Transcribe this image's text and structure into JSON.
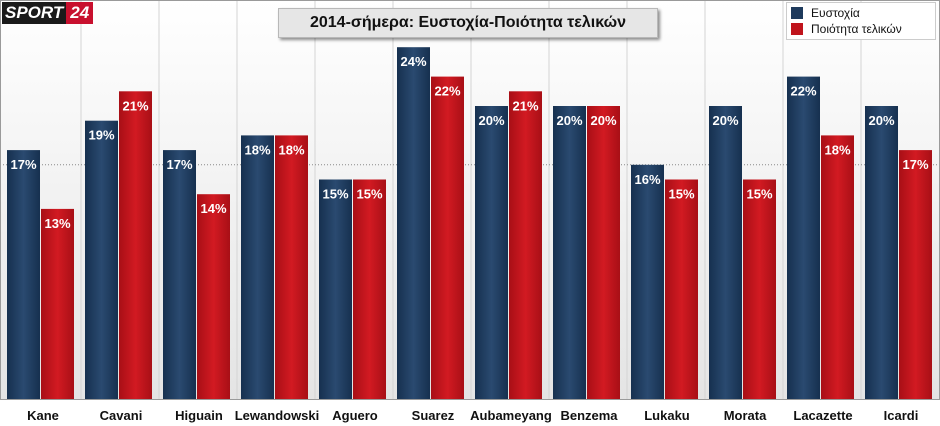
{
  "logo": {
    "word": "SPORT",
    "number": "24"
  },
  "colors": {
    "series1": "#1e3a5c",
    "series2": "#c0141c"
  },
  "chart_data": {
    "type": "bar",
    "title": "2014-σήμερα: Ευστοχία-Ποιότητα τελικών",
    "xlabel": "",
    "ylabel": "",
    "ylim": [
      0,
      30
    ],
    "legend": "top-right",
    "categories": [
      "Kane",
      "Cavani",
      "Higuain",
      "Lewandowski",
      "Aguero",
      "Suarez",
      "Aubameyang",
      "Benzema",
      "Lukaku",
      "Morata",
      "Lacazette",
      "Icardi"
    ],
    "series": [
      {
        "name": "Ευστοχία",
        "values": [
          17,
          19,
          17,
          18,
          15,
          24,
          20,
          20,
          16,
          20,
          22,
          20
        ],
        "labels": [
          "17%",
          "19%",
          "17%",
          "18%",
          "15%",
          "24%",
          "20%",
          "20%",
          "16%",
          "20%",
          "22%",
          "20%"
        ]
      },
      {
        "name": "Ποιότητα τελικών",
        "values": [
          13,
          21,
          14,
          18,
          15,
          22,
          21,
          20,
          15,
          15,
          18,
          17
        ],
        "labels": [
          "13%",
          "21%",
          "14%",
          "18%",
          "15%",
          "22%",
          "21%",
          "20%",
          "15%",
          "15%",
          "18%",
          "17%"
        ]
      }
    ]
  }
}
